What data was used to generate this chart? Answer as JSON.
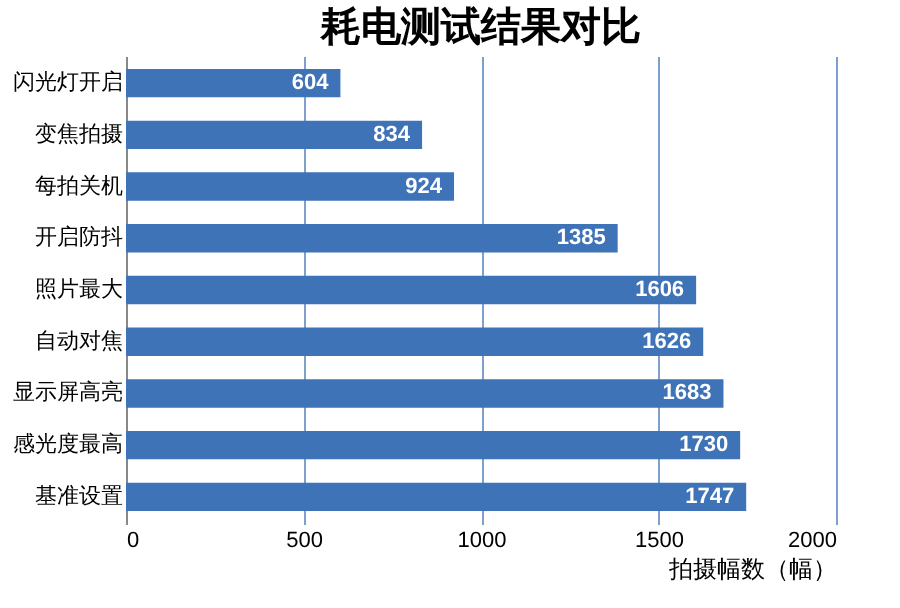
{
  "chart_data": {
    "type": "bar",
    "orientation": "horizontal",
    "title": "耗电测试结果对比",
    "xlabel": "拍摄幅数（幅）",
    "categories": [
      "闪光灯开启",
      "变焦拍摄",
      "每拍关机",
      "开启防抖",
      "照片最大",
      "自动对焦",
      "显示屏高亮",
      "感光度最高",
      "基准设置"
    ],
    "values": [
      604,
      834,
      924,
      1385,
      1606,
      1626,
      1683,
      1730,
      1747
    ],
    "color": "#3f73b8",
    "xlim": [
      0,
      2000
    ],
    "xticks": [
      0,
      500,
      1000,
      1500,
      2000
    ],
    "grid": "x",
    "data_labels": true
  }
}
